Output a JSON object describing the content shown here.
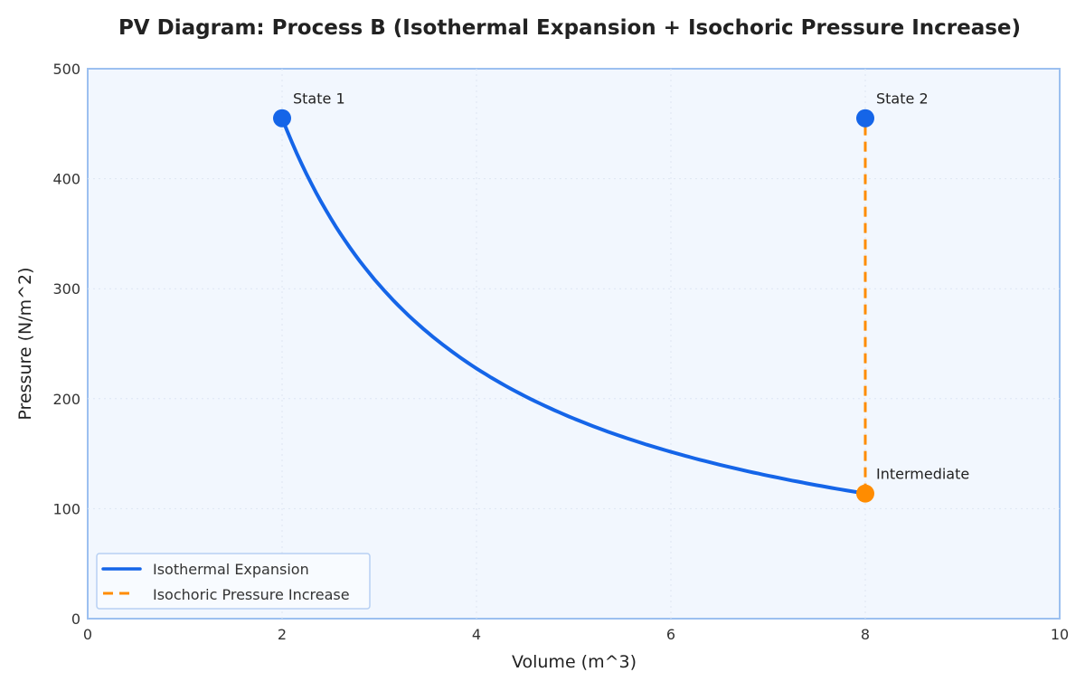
{
  "chart_data": {
    "type": "line",
    "title": "PV Diagram: Process B (Isothermal Expansion + Isochoric Pressure Increase)",
    "xlabel": "Volume (m^3)",
    "ylabel": "Pressure (N/m^2)",
    "xlim": [
      0,
      10
    ],
    "ylim": [
      0,
      500
    ],
    "xticks": [
      0,
      2,
      4,
      6,
      8,
      10
    ],
    "yticks": [
      0,
      100,
      200,
      300,
      400,
      500
    ],
    "grid": true,
    "legend_position": "bottom-left",
    "series": [
      {
        "name": "Isothermal Expansion",
        "style": "solid",
        "color": "#1565e8",
        "function": "P = P1*V1/V",
        "x_range": [
          2,
          8
        ],
        "endpoints": [
          {
            "x": 2,
            "y": 455
          },
          {
            "x": 8,
            "y": 113.75
          }
        ]
      },
      {
        "name": "Isochoric Pressure Increase",
        "style": "dashed",
        "color": "#ff8c00",
        "points": [
          {
            "x": 8,
            "y": 113.75
          },
          {
            "x": 8,
            "y": 455
          }
        ]
      }
    ],
    "points": [
      {
        "label": "State 1",
        "x": 2,
        "y": 455,
        "color": "#1565e8"
      },
      {
        "label": "State 2",
        "x": 8,
        "y": 455,
        "color": "#1565e8"
      },
      {
        "label": "Intermediate",
        "x": 8,
        "y": 113.75,
        "color": "#ff8c00"
      }
    ]
  },
  "colors": {
    "plot_bg": "#f2f7fe",
    "frame": "#9cc0f0",
    "grid": "#dde6f3"
  }
}
